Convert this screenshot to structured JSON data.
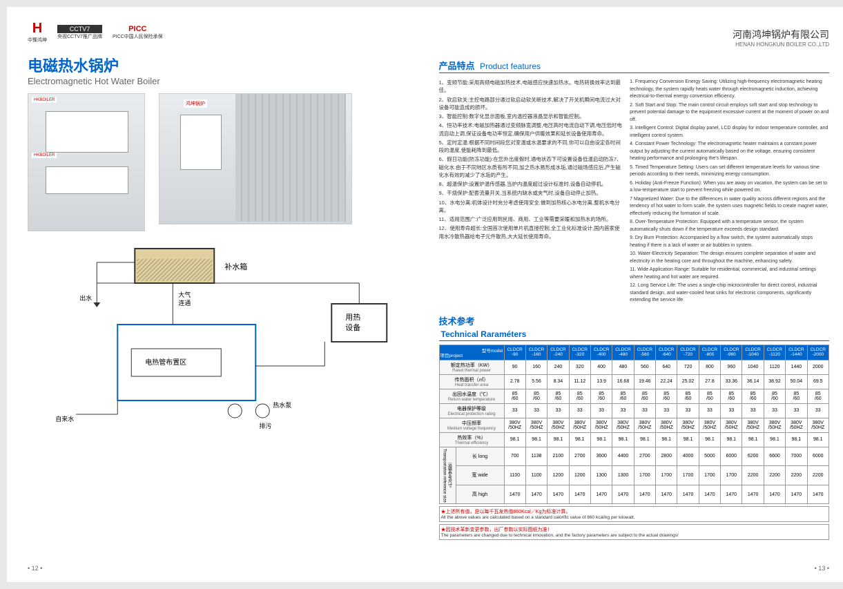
{
  "header": {
    "logo1": "中豫鸿坤",
    "logo1_h": "H",
    "logo2_top": "CCTV7",
    "logo2_sub": "央视CCTV7推广品牌",
    "logo3_top": "PICC",
    "logo3_sub": "PICC中国人民保险承保",
    "company_cn": "河南鸿坤锅炉有限公司",
    "company_en": "HENAN HONGKUN BOILER CO.,LTD"
  },
  "title": {
    "cn": "电磁热水锅炉",
    "en": "Electromagnetic Hot Water Boiler"
  },
  "product_label": "HKBOILER",
  "brand_label": "鸿坤锅炉",
  "schematic_labels": {
    "water_tank": "补水箱",
    "outlet": "出水",
    "air_vent": "大气连通",
    "heat_device": "用热设备",
    "heating_zone": "电热管布置区",
    "hot_water_pump": "热水泵",
    "drain": "排污",
    "inlet": "自来水"
  },
  "features": {
    "title_cn": "产品特点",
    "title_en": "Product features",
    "cn": [
      "1、变频节能:采用高频电磁加热技术,电磁感应快速加热水。电热转换效率达到最佳。",
      "2、软启软关:主控电路部分通过软启动软关断技术,解决了开关机瞬间电流过大对设备可能造成的损坏。",
      "3、智能控制:数字化显示面板,室内温控器液晶显示和智能控制。",
      "4、恒功率技术:电磁加热器通过变频脉宽调整,电压高时电流自动下调,电压低时电流自动上调,保证设备电功率恒定,确保用户供暖效果和延长设备使用寿命。",
      "5、定时定温:根据不同时间段您对室温或水温要求的不同,你可以自由设定各时间段的温度,使能耗降到最低。",
      "6、假日功能(防冻功能):在您外出度假时,通电状态下可设置设备低温启动防冻7、磁化水:由于不同地区水质有所不同,加之热水易形成水垢,通过磁场感应后,产生磁化水有效的减少了水垢的产生。",
      "8、超温保护:设置炉温传感器,当炉内温度超过设计标准时,设备自动停机。",
      "9、干烧保护:配套流量开关,当系统内缺水或夹气时,设备自动停止加热。",
      "10、水电分离:机体设计时充分考虑使用安全,做到加热核心水电分离,整机水电分离。",
      "11、适用范围广:广泛应用到民用、商用、工业等需要采暖和加热水的场所。",
      "12、使用寿命超长:全国首次使用单片机直接控制,全工业化标准设计,国内首家使用水冷散热器给电子元件散热,大大延长使用寿命。"
    ],
    "en": [
      "1. Frequency Conversion Energy Saving: Utilizing high-frequency electromagnetic heating technology, the system rapidly heats water through electromagnetic induction, achieving electrical-to-thermal energy conversion efficiency.",
      "2. Soft Start and Stop: The main control circuit employs soft start and stop technology to prevent potential damage to the equipment excessive current at the moment of power on and off.",
      "3. Intelligent Control: Digital display panel, LCD display for indoor temperature controller, and intelligent control system.",
      "4. Constant Power Technology: The electromagnetic heater maintains a constant power output by adjusting the current automatically based on the voltage, ensuring consistent heating performance and prolonging the's lifespan.",
      "5. Timed Temperature Setting: Users can set different temperature levels for various time periods according to their needs, minimizing energy consumption.",
      "6. Holiday (Anti-Freeze Function): When you are away on vacation, the system can be set to a low-temperature start to prevent freezing while powered on.",
      "7 Magnetized Water: Due to the differences in water quality across different regions and the tendency of hot water to form scale, the system uses magnetic fields to create magnet water, effectively reducing the formation of scale.",
      "8. Over-Temperature Protection: Equipped with a temperature sensor, the system automatically shuts down if the temperature exceeds design standard.",
      "9. Dry Burn Protection: Accompanied by a flow switch, the system automatically stops heating if there is a lack of water or air bubbles in system.",
      "10. Water-Electricity Separation: The design ensures complete separation of water and electricity in the heating core and throughout the machine, enhancing safety.",
      "11. Wide Application Range: Suitable for residential, commercial, and industrial settings where heating and hot water are required.",
      "12. Long Service Life: The uses a single-chip microcontroller for direct control, industrial standard design, and water-cooled heat sinks for electronic components, significantly extending the service life"
    ]
  },
  "tech": {
    "title_cn": "技术参考",
    "title_en": "Technical Raraméters",
    "header_label_cn": "项目project",
    "header_label_model": "型号model",
    "models": [
      "CLDCR-90",
      "CLDCR-160",
      "CLDCR-240",
      "CLDCR-320",
      "CLDCR-400",
      "CLDCR-480",
      "CLDCR-560",
      "CLDCR-640",
      "CLDCR-720",
      "CLDCR-800",
      "CLDCR-960",
      "CLDCR-1040",
      "CLDCR-1120",
      "CLDCR-1440",
      "CLDCR-2000"
    ],
    "rows": [
      {
        "cn": "额定热功率（KW）",
        "en": "Rated thermal power",
        "vals": [
          "90",
          "160",
          "240",
          "320",
          "400",
          "480",
          "560",
          "640",
          "720",
          "800",
          "960",
          "1040",
          "1120",
          "1440",
          "2000"
        ]
      },
      {
        "cn": "传热面积（㎡）",
        "en": "Heat transfer area",
        "vals": [
          "2.78",
          "5.56",
          "8.34",
          "11.12",
          "13.9",
          "16.68",
          "19.46",
          "22.24",
          "25.02",
          "27.8",
          "33.36",
          "36.14",
          "38.92",
          "50.04",
          "69.5"
        ]
      },
      {
        "cn": "出回水温度（℃）",
        "en": "Return water temperature",
        "vals": [
          "85/60",
          "85/60",
          "85/60",
          "85/60",
          "85/60",
          "85/60",
          "85/60",
          "85/60",
          "85/60",
          "85/60",
          "85/60",
          "85/60",
          "85/60",
          "85/60",
          "85/60"
        ]
      },
      {
        "cn": "电器保护等级",
        "en": "Electrical protection rating",
        "vals": [
          "33",
          "33",
          "33",
          "33",
          "33",
          "33",
          "33",
          "33",
          "33",
          "33",
          "33",
          "33",
          "33",
          "33",
          "33"
        ]
      },
      {
        "cn": "中压频率",
        "en": "Medium voltage frequency",
        "vals": [
          "380V/50HZ",
          "380V/50HZ",
          "380V/50HZ",
          "380V/50HZ",
          "380V/50HZ",
          "380V/50HZ",
          "380V/50HZ",
          "380V/50HZ",
          "380V/50HZ",
          "380V/50HZ",
          "380V/50HZ",
          "380V/50HZ",
          "380V/50HZ",
          "380V/50HZ",
          "380V/50HZ"
        ]
      },
      {
        "cn": "热效率（%）",
        "en": "Thermal efficiency",
        "vals": [
          "98.1",
          "98.1",
          "98.1",
          "98.1",
          "98.1",
          "98.1",
          "98.1",
          "98.1",
          "98.1",
          "98.1",
          "98.1",
          "98.1",
          "98.1",
          "98.1",
          "98.1"
        ]
      }
    ],
    "dim_group": {
      "cn": "运输参考尺寸",
      "en": "Transportation reference size"
    },
    "dim_rows": [
      {
        "cn": "长 long",
        "vals": [
          "700",
          "1138",
          "2100",
          "2700",
          "3600",
          "4400",
          "2700",
          "2800",
          "4000",
          "5000",
          "6000",
          "6200",
          "6600",
          "7000",
          "6000"
        ]
      },
      {
        "cn": "宽 wide",
        "vals": [
          "1100",
          "1100",
          "1200",
          "1200",
          "1300",
          "1300",
          "1700",
          "1700",
          "1700",
          "1700",
          "1700",
          "2200",
          "2200",
          "2200",
          "2200"
        ]
      },
      {
        "cn": "高 high",
        "vals": [
          "1470",
          "1470",
          "1470",
          "1470",
          "1470",
          "1470",
          "1470",
          "1470",
          "1470",
          "1470",
          "1470",
          "1470",
          "1470",
          "1470",
          "1470"
        ]
      }
    ],
    "note1_cn": "★上述所有值，是以每千瓦发热值860Kcal／Kg为标准计算。",
    "note1_en": "All the above values are calculated based on a standard calorific value of 860 kcal/kg per kilowatt.",
    "note2_cn": "★因技术革新变更参数，出厂参数以实际图纸为准！",
    "note2_en": "The parameters are changed due to technical innovation, and the factory parameters are subject to the actual drawings!"
  },
  "page_left": "• 12 •",
  "page_right": "• 13 •",
  "colors": {
    "primary": "#0066cc",
    "red": "#c00000"
  }
}
